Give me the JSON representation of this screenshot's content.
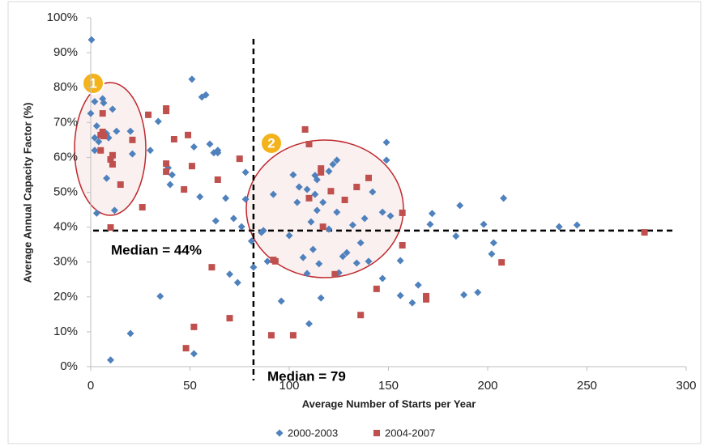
{
  "chart_data": {
    "type": "scatter",
    "x_label": "Average Number of Starts per Year",
    "y_label": "Average Annual Capacity Factor (%)",
    "xlim": [
      0,
      300
    ],
    "xticks": [
      0,
      50,
      100,
      150,
      200,
      250,
      300
    ],
    "ylim": [
      0,
      100
    ],
    "yticks": [
      {
        "value": 0,
        "label": "0%"
      },
      {
        "value": 10,
        "label": "10%"
      },
      {
        "value": 20,
        "label": "20%"
      },
      {
        "value": 30,
        "label": "30%"
      },
      {
        "value": 40,
        "label": "40%"
      },
      {
        "value": 50,
        "label": "50%"
      },
      {
        "value": 60,
        "label": "60%"
      },
      {
        "value": 70,
        "label": "70%"
      },
      {
        "value": 80,
        "label": "80%"
      },
      {
        "value": 90,
        "label": "90%"
      },
      {
        "value": 100,
        "label": "100%"
      }
    ],
    "grid": false,
    "legend": "bottom",
    "series": [
      {
        "name": "2000-2003",
        "color": "#4f81bd",
        "marker": "diamond",
        "x": [
          0.4,
          2,
          0,
          3,
          2,
          4,
          2,
          6,
          6.5,
          8,
          9,
          8,
          3,
          11,
          13,
          12,
          20,
          21,
          30,
          34,
          35,
          20,
          10,
          39,
          41,
          40,
          51,
          52,
          55,
          56,
          58,
          60,
          62,
          64,
          64,
          63,
          52,
          68,
          70,
          72,
          74,
          76,
          78,
          78,
          81,
          82,
          86,
          87,
          89,
          92,
          96,
          100,
          102,
          104,
          105,
          107,
          110,
          109,
          109,
          111,
          112,
          113,
          114,
          113,
          114,
          116,
          115,
          117,
          120,
          120,
          122,
          124,
          124,
          125,
          127,
          129,
          132,
          134,
          136,
          138,
          140,
          142,
          147,
          147,
          149,
          149,
          151,
          156,
          156,
          162,
          165,
          171,
          172,
          184,
          186,
          188,
          195,
          198,
          202,
          203,
          208,
          236,
          245
        ],
        "values": [
          93.7,
          76,
          72.6,
          69,
          65.6,
          64.5,
          62,
          76.8,
          75.6,
          66.8,
          65.6,
          54,
          44,
          73.8,
          67.5,
          44.8,
          67.5,
          61,
          62,
          70.3,
          20.2,
          9.5,
          1.9,
          57,
          55,
          52.2,
          82.4,
          63,
          48.7,
          77.3,
          77.9,
          63.8,
          61.3,
          62,
          61.3,
          41.8,
          3.7,
          48.3,
          26.5,
          42.5,
          24.1,
          40.1,
          55.7,
          48,
          36,
          28.5,
          38.5,
          39,
          30.2,
          49.4,
          18.8,
          37.6,
          55,
          47.1,
          51.5,
          31.3,
          12.3,
          50.8,
          26.7,
          41.5,
          33.6,
          49.4,
          44.8,
          54.8,
          53.6,
          19.7,
          29.5,
          47.1,
          39.4,
          56,
          58,
          59.2,
          44.3,
          26.9,
          31.6,
          32.7,
          40.6,
          29.7,
          35.5,
          42.5,
          30.2,
          50.1,
          44.3,
          25.3,
          59.2,
          64.3,
          43.2,
          30.4,
          20.4,
          18.3,
          23.4,
          40.8,
          43.9,
          37.4,
          46.2,
          20.6,
          21.3,
          40.8,
          32.3,
          35.5,
          48.3,
          40.1,
          40.6
        ]
      },
      {
        "name": "2004-2007",
        "color": "#c0504d",
        "marker": "square",
        "x": [
          6,
          5,
          6.5,
          6,
          5,
          11,
          10,
          11,
          15,
          10,
          21,
          26,
          29,
          38,
          38,
          38,
          38,
          42,
          47,
          49,
          51,
          61,
          64,
          52,
          48,
          70,
          75,
          92,
          93,
          91,
          102,
          108,
          110,
          110,
          116,
          116,
          117,
          121,
          123,
          128,
          134,
          136,
          140,
          144,
          157,
          157,
          169,
          169,
          207,
          279
        ],
        "values": [
          67.3,
          66.4,
          66.1,
          72.6,
          62,
          60.6,
          59.4,
          58,
          52.2,
          39.9,
          65,
          45.7,
          72.2,
          74,
          73.3,
          58.2,
          55.9,
          65.2,
          50.8,
          66.4,
          57.5,
          28.5,
          53.6,
          11.4,
          5.3,
          13.9,
          59.6,
          30.6,
          30.2,
          9,
          9,
          68,
          63.8,
          48.3,
          56.8,
          55.7,
          40.1,
          50.3,
          26.5,
          47.8,
          51.5,
          14.8,
          54.1,
          22.3,
          44.1,
          34.8,
          20.2,
          19.3,
          29.9,
          38.5
        ]
      }
    ],
    "reference_lines": [
      {
        "axis": "x",
        "value": 82
      },
      {
        "axis": "y",
        "value": 39
      }
    ],
    "annotations": [
      "Median = 44%",
      "Median = 79",
      "1",
      "2"
    ]
  }
}
